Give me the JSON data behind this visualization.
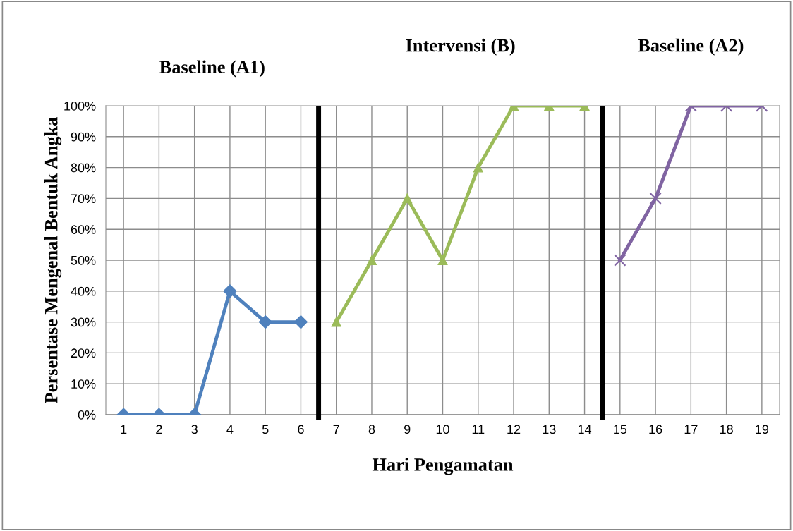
{
  "chart_data": {
    "type": "line",
    "xlabel": "Hari Pengamatan",
    "ylabel": "Persentase Mengenal Bentuk Angka",
    "xlim": [
      0.5,
      19.5
    ],
    "xticks": [
      1,
      2,
      3,
      4,
      5,
      6,
      7,
      8,
      9,
      10,
      11,
      12,
      13,
      14,
      15,
      16,
      17,
      18,
      19
    ],
    "ylim": [
      0,
      100
    ],
    "yticks": [
      {
        "value": 0,
        "label": "0%"
      },
      {
        "value": 10,
        "label": "10%"
      },
      {
        "value": 20,
        "label": "20%"
      },
      {
        "value": 30,
        "label": "30%"
      },
      {
        "value": 40,
        "label": "40%"
      },
      {
        "value": 50,
        "label": "50%"
      },
      {
        "value": 60,
        "label": "60%"
      },
      {
        "value": 70,
        "label": "70%"
      },
      {
        "value": 80,
        "label": "80%"
      },
      {
        "value": 90,
        "label": "90%"
      },
      {
        "value": 100,
        "label": "100%"
      }
    ],
    "grid": true,
    "series": [
      {
        "color": "#4f81bd",
        "marker": "diamond",
        "x": [
          1,
          2,
          3,
          4,
          5,
          6
        ],
        "values": [
          0,
          0,
          0,
          40,
          30,
          30
        ]
      },
      {
        "color": "#9bbb59",
        "marker": "triangle",
        "x": [
          7,
          8,
          9,
          10,
          11,
          12,
          13,
          14
        ],
        "values": [
          30,
          50,
          70,
          50,
          80,
          100,
          100,
          100
        ]
      },
      {
        "color": "#8064a2",
        "marker": "cross",
        "x": [
          15,
          16,
          17,
          18,
          19
        ],
        "values": [
          50,
          70,
          100,
          100,
          100
        ]
      }
    ],
    "ref_lines": [
      {
        "axis": "x",
        "value": 6.5,
        "color": "#000000"
      },
      {
        "axis": "x",
        "value": 14.5,
        "color": "#000000"
      }
    ],
    "annotations": [
      "Baseline (A1)",
      "Intervensi (B)",
      "Baseline (A2)"
    ]
  }
}
